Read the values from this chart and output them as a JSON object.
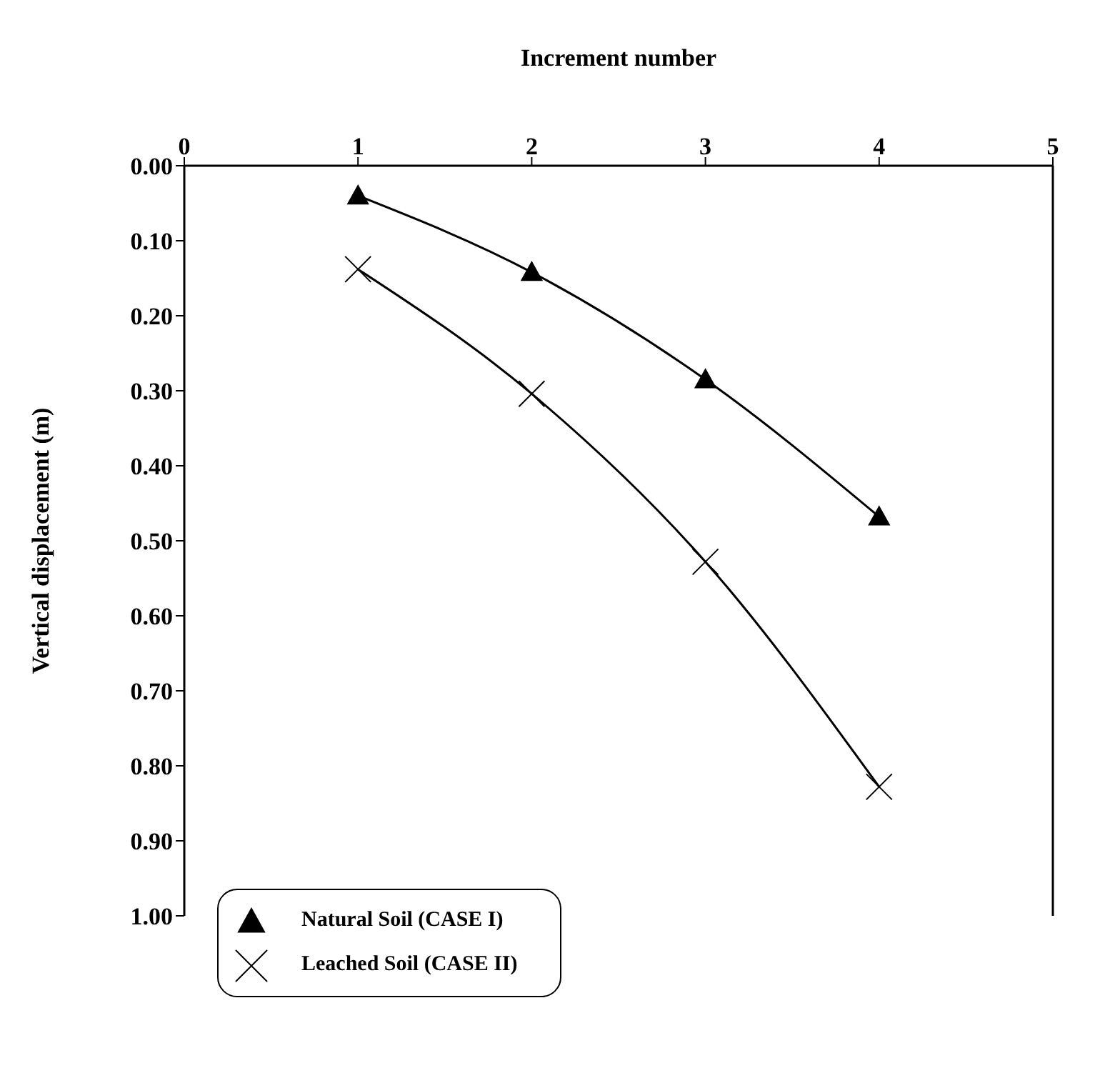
{
  "chart_data": {
    "type": "line",
    "xlabel": "Increment  number",
    "ylabel": "Vertical displacement (m)",
    "x": [
      1,
      2,
      3,
      4
    ],
    "series": [
      {
        "name": "Natural Soil (CASE I)",
        "color": "#000000",
        "marker": "triangle",
        "values": [
          0.04,
          0.142,
          0.285,
          0.468
        ]
      },
      {
        "name": "Leached Soil (CASE II)",
        "color": "#000000",
        "marker": "cross",
        "values": [
          0.138,
          0.304,
          0.528,
          0.828
        ]
      }
    ],
    "xlim": [
      0,
      5
    ],
    "xticks": [
      0,
      1,
      2,
      3,
      4,
      5
    ],
    "ylim": [
      1,
      0
    ],
    "yticks": [
      {
        "value": 0,
        "label": "0.00"
      },
      {
        "value": 0.1,
        "label": "0.10"
      },
      {
        "value": 0.2,
        "label": "0.20"
      },
      {
        "value": 0.3,
        "label": "0.30"
      },
      {
        "value": 0.4,
        "label": "0.40"
      },
      {
        "value": 0.5,
        "label": "0.50"
      },
      {
        "value": 0.6,
        "label": "0.60"
      },
      {
        "value": 0.7,
        "label": "0.70"
      },
      {
        "value": 0.8,
        "label": "0.80"
      },
      {
        "value": 0.9,
        "label": "0.90"
      },
      {
        "value": 1,
        "label": "1.00"
      }
    ],
    "grid": false,
    "legend": "bottom left",
    "line_style": "solid"
  }
}
